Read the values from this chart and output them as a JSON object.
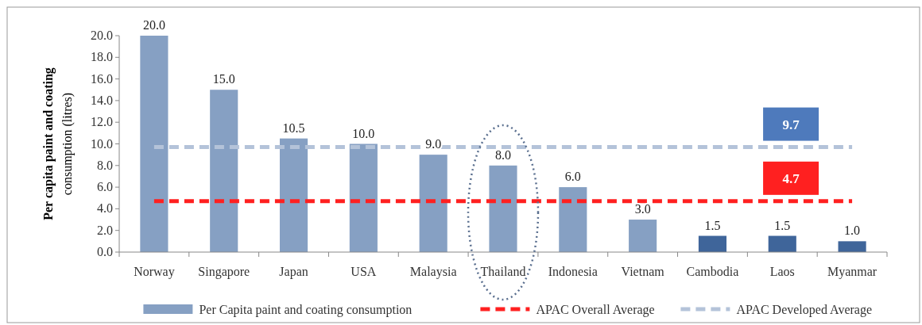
{
  "chart_data": {
    "type": "bar",
    "ylabel": "Per capita paint and coating consumption (litres)",
    "categories": [
      "Norway",
      "Singapore",
      "Japan",
      "USA",
      "Malaysia",
      "Thailand",
      "Indonesia",
      "Vietnam",
      "Cambodia",
      "Laos",
      "Myanmar"
    ],
    "series": [
      {
        "name": "Per Capita paint and coating consumption",
        "colors": [
          "#86a0c3",
          "#86a0c3",
          "#86a0c3",
          "#86a0c3",
          "#86a0c3",
          "#86a0c3",
          "#86a0c3",
          "#86a0c3",
          "#3f659a",
          "#3f659a",
          "#3f659a"
        ],
        "values": [
          20.0,
          15.0,
          10.5,
          10.0,
          9.0,
          8.0,
          6.0,
          3.0,
          1.5,
          1.5,
          1.0
        ],
        "value_labels": [
          "20.0",
          "15.0",
          "10.5",
          "10.0",
          "9.0",
          "8.0",
          "6.0",
          "3.0",
          "1.5",
          "1.5",
          "1.0"
        ]
      },
      {
        "name": "APAC Overall Average",
        "type": "line",
        "color": "#ff2020",
        "line_style": "dashed",
        "values": [
          4.7,
          4.7,
          4.7,
          4.7,
          4.7,
          4.7,
          4.7,
          4.7,
          4.7,
          4.7,
          4.7
        ]
      },
      {
        "name": "APAC Developed Average",
        "type": "line",
        "color": "#b4c3d9",
        "line_style": "dashed",
        "values": [
          9.7,
          9.7,
          9.7,
          9.7,
          9.7,
          9.7,
          9.7,
          9.7,
          9.7,
          9.7,
          9.7
        ]
      }
    ],
    "annotations": [
      "9.7",
      "4.7"
    ],
    "ylim": [
      0,
      20
    ],
    "yticks": [
      {
        "value": 0,
        "label": "0.0"
      },
      {
        "value": 2,
        "label": "2.0"
      },
      {
        "value": 4,
        "label": "4.0"
      },
      {
        "value": 6,
        "label": "6.0"
      },
      {
        "value": 8,
        "label": "8.0"
      },
      {
        "value": 10,
        "label": "10.0"
      },
      {
        "value": 12,
        "label": "12.0"
      },
      {
        "value": 14,
        "label": "14.0"
      },
      {
        "value": 16,
        "label": "16.0"
      },
      {
        "value": 18,
        "label": "18.0"
      },
      {
        "value": 20,
        "label": "20.0"
      }
    ],
    "grid": false,
    "legend": "bottom"
  }
}
